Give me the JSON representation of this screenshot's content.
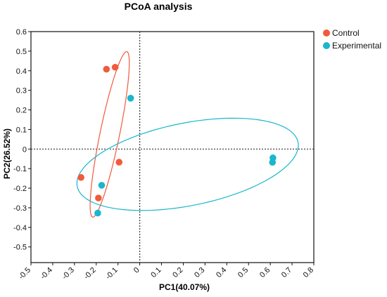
{
  "chart_data": {
    "type": "scatter",
    "title": "PCoA analysis",
    "xlabel": "PC1(40.07%)",
    "ylabel": "PC2(26.52%)",
    "xlim": [
      -0.5,
      0.8
    ],
    "ylim": [
      -0.58,
      0.6
    ],
    "x_ticks": [
      -0.5,
      -0.4,
      -0.3,
      -0.2,
      -0.1,
      0,
      0.1,
      0.2,
      0.3,
      0.4,
      0.5,
      0.6,
      0.7,
      0.8
    ],
    "y_ticks": [
      0.6,
      0.5,
      0.4,
      0.3,
      0.2,
      0.1,
      0,
      -0.1,
      -0.2,
      -0.3,
      -0.4,
      -0.5
    ],
    "legend_position": "top-right",
    "grid": false,
    "zero_lines": "dashed",
    "series": [
      {
        "name": "Control",
        "color": "#f15a3c",
        "points": [
          {
            "x": -0.153,
            "y": 0.408
          },
          {
            "x": -0.113,
            "y": 0.418
          },
          {
            "x": -0.095,
            "y": -0.067
          },
          {
            "x": -0.27,
            "y": -0.145
          },
          {
            "x": -0.19,
            "y": -0.25
          }
        ],
        "ellipse": {
          "cx": -0.138,
          "cy": 0.075,
          "rx": 0.43,
          "ry": 0.045,
          "angle_deg": 79.5
        }
      },
      {
        "name": "Experimental",
        "color": "#1ab6cc",
        "points": [
          {
            "x": -0.042,
            "y": 0.26
          },
          {
            "x": -0.175,
            "y": -0.185
          },
          {
            "x": -0.193,
            "y": -0.327
          },
          {
            "x": 0.612,
            "y": -0.045
          },
          {
            "x": 0.61,
            "y": -0.068
          }
        ],
        "ellipse": {
          "cx": 0.22,
          "cy": -0.078,
          "rx": 0.52,
          "ry": 0.21,
          "angle_deg": 13
        }
      }
    ]
  }
}
